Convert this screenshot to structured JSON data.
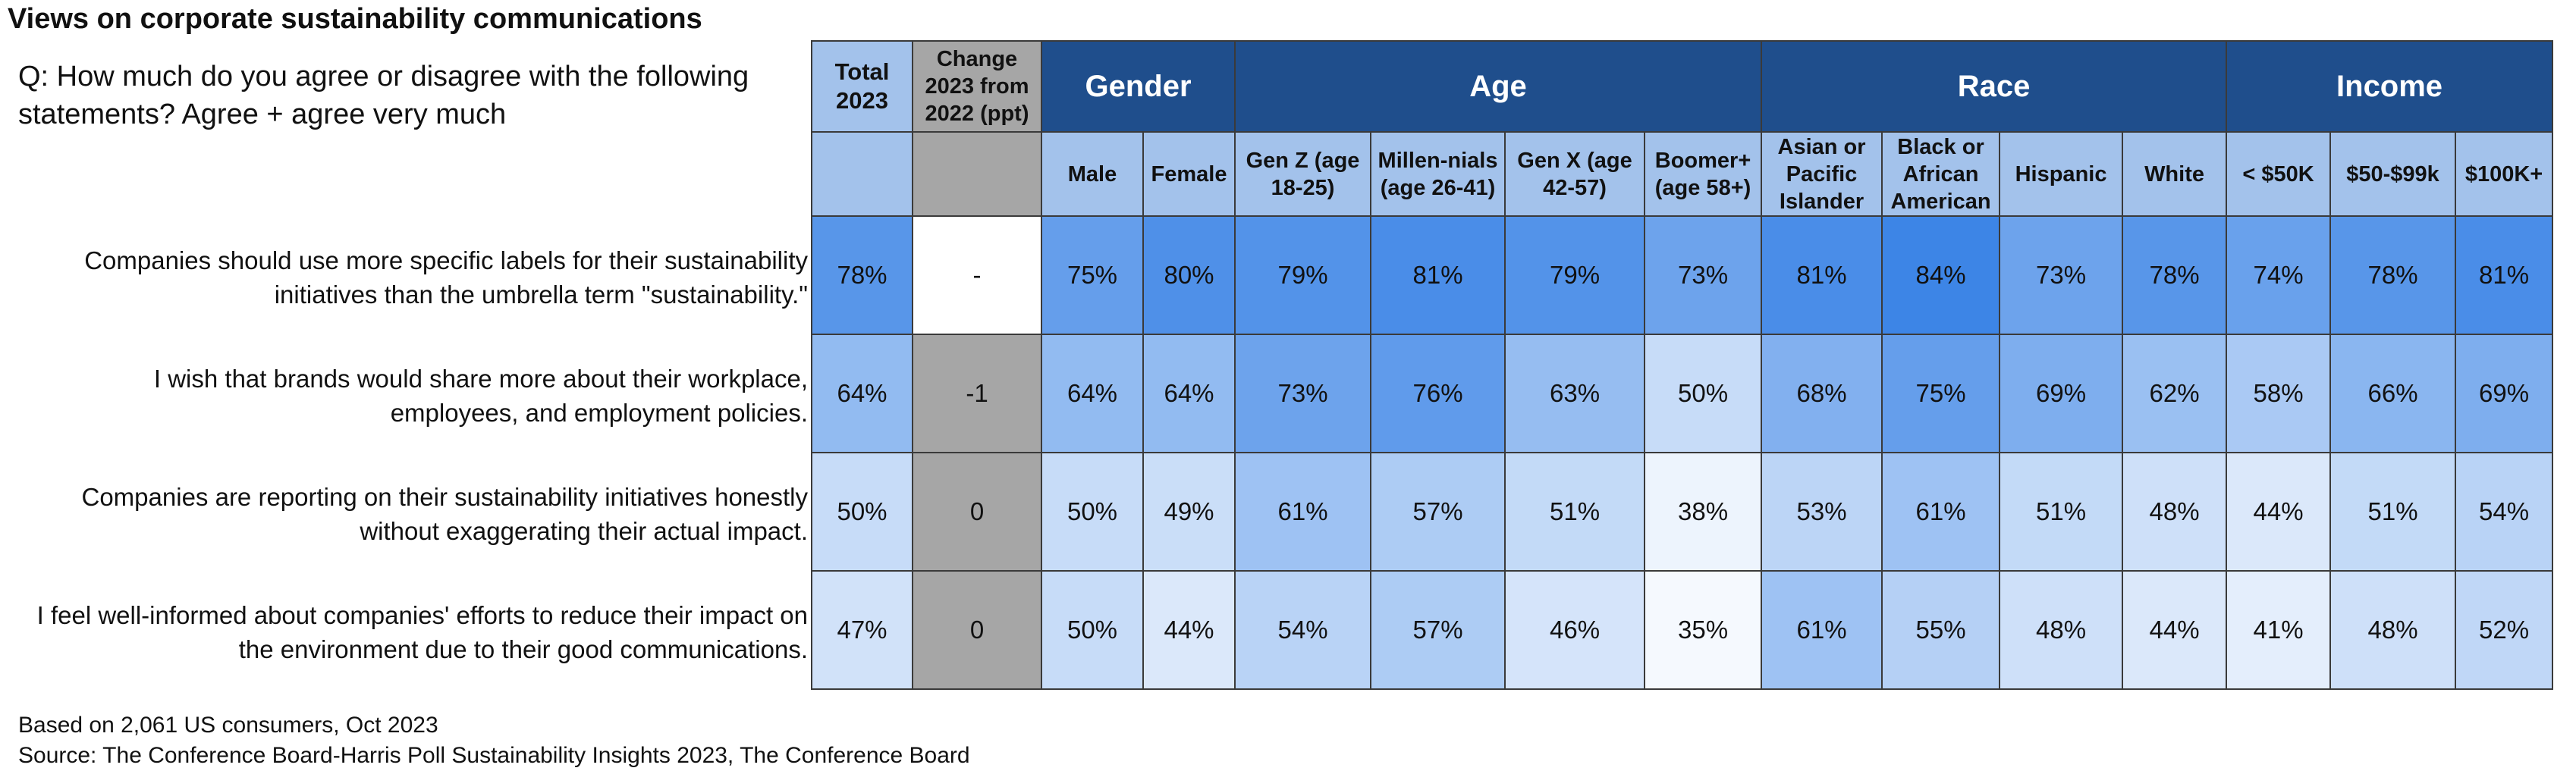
{
  "title": "Views on corporate sustainability communications",
  "question": "Q: How much do you agree or disagree with the following statements? Agree + agree very much",
  "footnote": {
    "base": "Based on 2,061 US consumers, Oct 2023",
    "source": "Source: The Conference Board-Harris Poll Sustainability Insights 2023, The Conference Board"
  },
  "colors": {
    "group_header": "#1f4e8c",
    "subheader": "#a3c2eb",
    "change_column": "#a6a6a6",
    "scale_low": "#ffffff",
    "scale_high": "#3d85e6"
  },
  "chart_data": {
    "type": "table",
    "total_header": "Total 2023",
    "change_header": "Change 2023 from 2022 (ppt)",
    "groups": [
      {
        "name": "Gender",
        "columns": [
          "Male",
          "Female"
        ]
      },
      {
        "name": "Age",
        "columns": [
          "Gen Z (age 18-25)",
          "Millen-nials (age 26-41)",
          "Gen X (age 42-57)",
          "Boomer+ (age 58+)"
        ]
      },
      {
        "name": "Race",
        "columns": [
          "Asian or Pacific Islander",
          "Black or African American",
          "Hispanic",
          "White"
        ]
      },
      {
        "name": "Income",
        "columns": [
          "< $50K",
          "$50-$99k",
          "$100K+"
        ]
      }
    ],
    "rows": [
      {
        "statement": [
          "Companies should use more specific labels for their sustainability",
          "initiatives than the umbrella term \"sustainability.\""
        ],
        "total": "78%",
        "change": "-",
        "values": [
          "75%",
          "80%",
          "79%",
          "81%",
          "79%",
          "73%",
          "81%",
          "84%",
          "73%",
          "78%",
          "74%",
          "78%",
          "81%"
        ]
      },
      {
        "statement": [
          "I wish that brands would share more about their workplace,",
          "employees, and employment policies."
        ],
        "total": "64%",
        "change": "-1",
        "values": [
          "64%",
          "64%",
          "73%",
          "76%",
          "63%",
          "50%",
          "68%",
          "75%",
          "69%",
          "62%",
          "58%",
          "66%",
          "69%"
        ]
      },
      {
        "statement": [
          "Companies are reporting on their sustainability initiatives honestly",
          "without exaggerating their actual impact."
        ],
        "total": "50%",
        "change": "0",
        "values": [
          "50%",
          "49%",
          "61%",
          "57%",
          "51%",
          "38%",
          "53%",
          "61%",
          "51%",
          "48%",
          "44%",
          "51%",
          "54%"
        ]
      },
      {
        "statement": [
          "I feel well-informed about companies' efforts to reduce their impact on",
          "the environment due to their good communications."
        ],
        "total": "47%",
        "change": "0",
        "values": [
          "50%",
          "44%",
          "54%",
          "57%",
          "46%",
          "35%",
          "61%",
          "55%",
          "48%",
          "44%",
          "41%",
          "48%",
          "52%"
        ]
      }
    ]
  }
}
